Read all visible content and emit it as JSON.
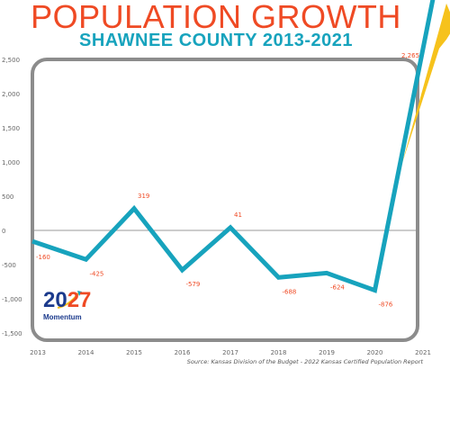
{
  "title": "POPULATION GROWTH",
  "subtitle": "SHAWNEE COUNTY 2013-2021",
  "source": "Source: Kansas Division of the Budget - 2022 Kansas Certified Population Report",
  "logo": {
    "num_a": "20",
    "num_b": "27",
    "word": "Momentum"
  },
  "colors": {
    "title": "#ef4a24",
    "subtitle": "#17a3bd",
    "line": "#17a3bd",
    "frame": "#8c8c8c",
    "labels": "#ef4a24",
    "arrow_yellow": "#f6c21c"
  },
  "chart_data": {
    "type": "line",
    "categories": [
      "2013",
      "2014",
      "2015",
      "2016",
      "2017",
      "2018",
      "2019",
      "2020",
      "2021"
    ],
    "values": [
      -160,
      -425,
      319,
      -579,
      41,
      -688,
      -624,
      -876,
      2265
    ],
    "data_labels": [
      "-160",
      "-425",
      "319",
      "-579",
      "41",
      "-688",
      "-624",
      "-876",
      "2,265"
    ],
    "yticks": [
      2500,
      2000,
      1500,
      1000,
      500,
      0,
      -500,
      -1000,
      -1500
    ],
    "ytick_labels": [
      "2,500",
      "2,000",
      "1,500",
      "1,000",
      "500",
      "0",
      "-500",
      "-1,000",
      "-1,500"
    ],
    "ylim": [
      -1500,
      2500
    ],
    "grid": false,
    "legend": "none"
  }
}
